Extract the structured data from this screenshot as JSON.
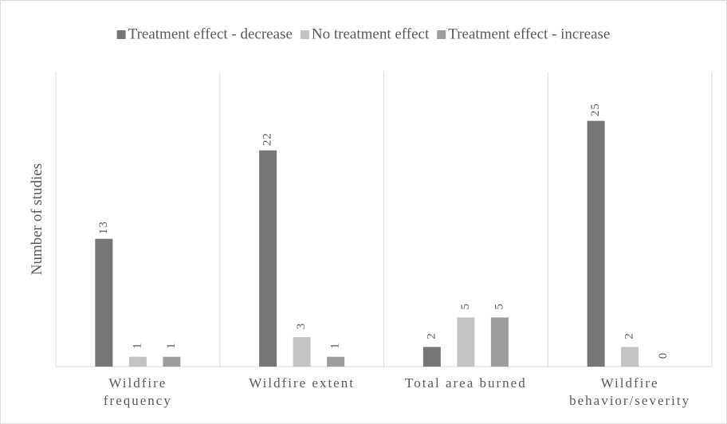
{
  "chart_data": {
    "type": "bar",
    "y_label": "Number of studies",
    "categories": [
      "Wildfire\nfrequency",
      "Wildfire extent",
      "Total area burned",
      "Wildfire\nbehavior/severity"
    ],
    "series": [
      {
        "name": "Treatment effect - decrease",
        "color": "#767676",
        "values": [
          13,
          22,
          2,
          25
        ]
      },
      {
        "name": "No treatment effect",
        "color": "#c3c3c3",
        "values": [
          1,
          3,
          5,
          2
        ]
      },
      {
        "name": "Treatment effect - increase",
        "color": "#9d9d9d",
        "values": [
          1,
          1,
          5,
          0
        ]
      }
    ],
    "ylim": [
      0,
      30
    ],
    "legend": "top"
  }
}
